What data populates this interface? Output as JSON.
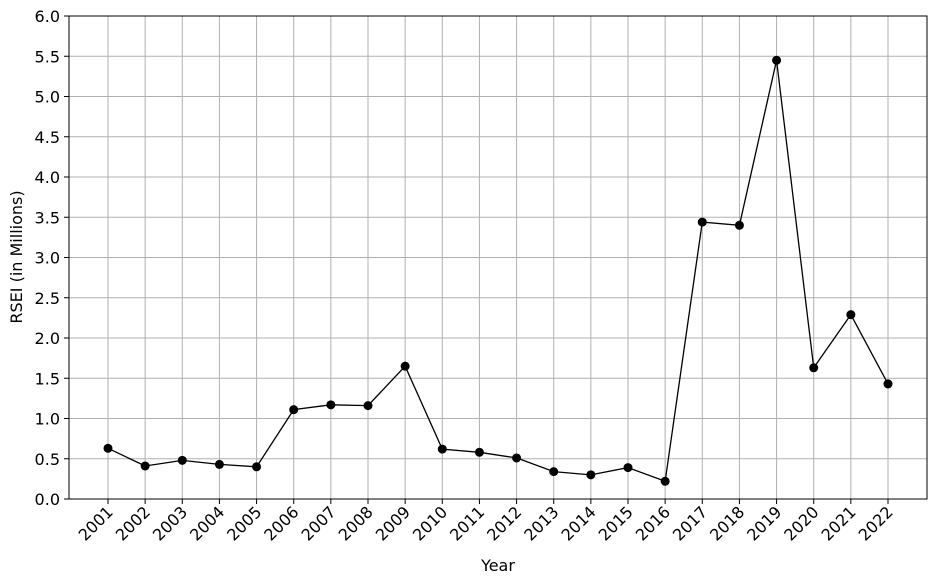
{
  "chart_data": {
    "type": "line",
    "x_label": "Year",
    "y_label": "RSEI (in Millions)",
    "categories": [
      "2001",
      "2002",
      "2003",
      "2004",
      "2005",
      "2006",
      "2007",
      "2008",
      "2009",
      "2010",
      "2011",
      "2012",
      "2013",
      "2014",
      "2015",
      "2016",
      "2017",
      "2018",
      "2019",
      "2020",
      "2021",
      "2022"
    ],
    "series": [
      {
        "color": "#000000",
        "values": [
          0.63,
          0.41,
          0.48,
          0.43,
          0.4,
          1.11,
          1.17,
          1.16,
          1.65,
          0.62,
          0.58,
          0.51,
          0.34,
          0.3,
          0.39,
          0.22,
          3.44,
          3.4,
          5.45,
          1.63,
          2.29,
          1.43
        ]
      }
    ],
    "ylim": [
      0,
      6
    ],
    "yticks": [
      {
        "value": 0,
        "label": "0.0"
      },
      0.5,
      {
        "value": 1,
        "label": "1.0"
      },
      1.5,
      {
        "value": 2,
        "label": "2.0"
      },
      2.5,
      {
        "value": 3,
        "label": "3.0"
      },
      3.5,
      {
        "value": 4,
        "label": "4.0"
      },
      4.5,
      {
        "value": 5,
        "label": "5.0"
      },
      5.5,
      {
        "value": 6,
        "label": "6.0"
      }
    ],
    "grid": true
  }
}
